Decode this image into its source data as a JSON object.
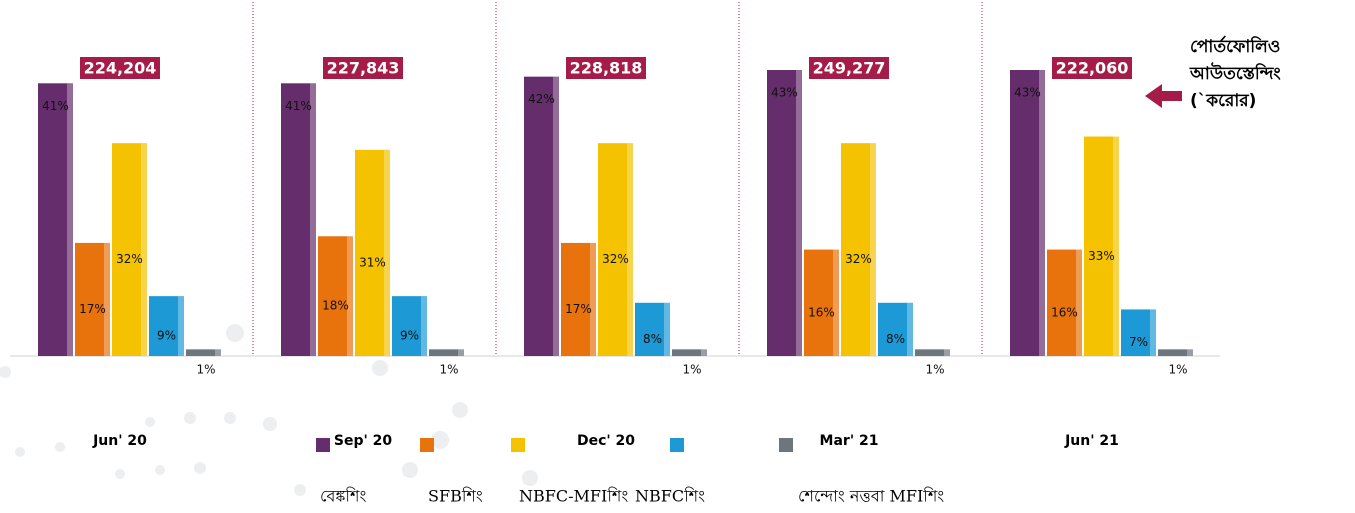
{
  "chart_data": {
    "type": "bar",
    "categories": [
      "Jun' 20",
      "Sep' 20",
      "Dec' 20",
      "Mar' 21",
      "Jun' 21"
    ],
    "totals": [
      "224,204",
      "227,843",
      "228,818",
      "249,277",
      "222,060"
    ],
    "annotation": [
      "পোর্তফোলিও",
      "আউতস্তেন্দিং",
      "(`করোর)"
    ],
    "series": [
      {
        "name": "বেঙ্কশিং",
        "color": "#652d6b",
        "values": [
          41,
          41,
          42,
          43,
          43
        ],
        "value_labels": [
          "41%",
          "41%",
          "42%",
          "43%",
          "43%"
        ]
      },
      {
        "name": "SFBশিং",
        "color": "#e8720c",
        "values": [
          17,
          18,
          17,
          16,
          16
        ],
        "value_labels": [
          "17%",
          "18%",
          "17%",
          "16%",
          "16%"
        ]
      },
      {
        "name": "NBFC-MFIশিং",
        "color": "#f5c200",
        "values": [
          32,
          31,
          32,
          32,
          33
        ],
        "value_labels": [
          "32%",
          "31%",
          "32%",
          "32%",
          "33%"
        ]
      },
      {
        "name": "NBFCশিং",
        "color": "#1d9ad6",
        "values": [
          9,
          9,
          8,
          8,
          7
        ],
        "value_labels": [
          "9%",
          "9%",
          "8%",
          "8%",
          "7%"
        ]
      },
      {
        "name": "শেন্দোং নত্তবা MFIশিং",
        "color": "#6d757d",
        "values": [
          1,
          1,
          1,
          1,
          1
        ],
        "value_labels": [
          "1%",
          "1%",
          "1%",
          "1%",
          "1%"
        ]
      }
    ]
  }
}
